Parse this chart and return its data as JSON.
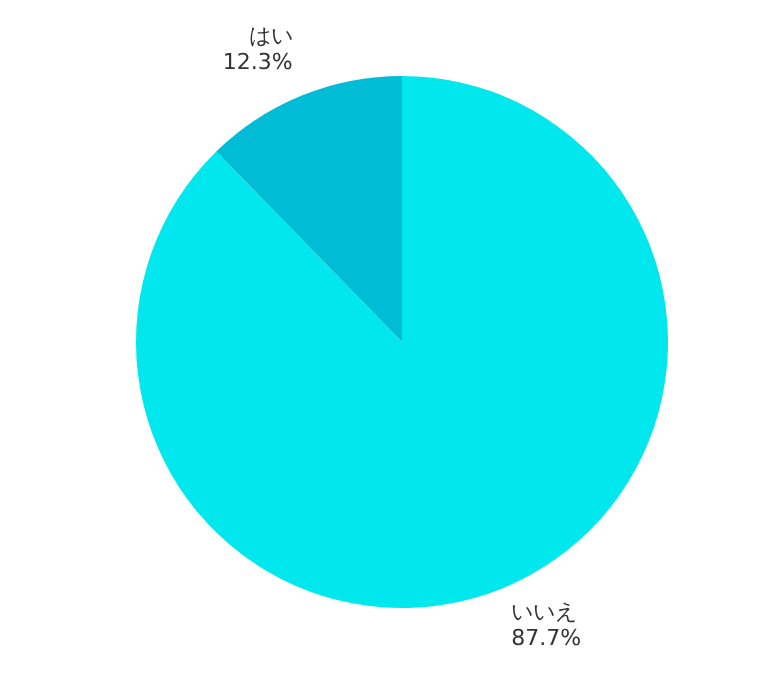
{
  "chart_data": {
    "type": "pie",
    "categories": [
      "いいえ",
      "はい"
    ],
    "values": [
      87.7,
      12.3
    ],
    "colors": [
      "#00e8ed",
      "#00bcd4"
    ],
    "value_labels": [
      "87.7%",
      "12.3%"
    ]
  }
}
